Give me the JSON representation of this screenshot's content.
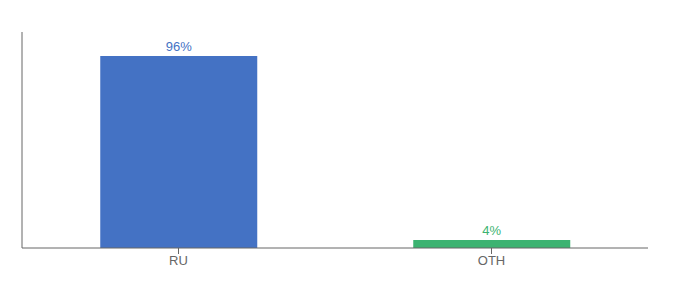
{
  "chart_data": {
    "type": "bar",
    "categories": [
      "RU",
      "OTH"
    ],
    "values": [
      96,
      4
    ],
    "value_labels": [
      "96%",
      "4%"
    ],
    "colors": [
      "#4472C4",
      "#3CB371"
    ],
    "ylim": [
      0,
      108
    ],
    "data_labels": true,
    "tick_labels": "x"
  }
}
